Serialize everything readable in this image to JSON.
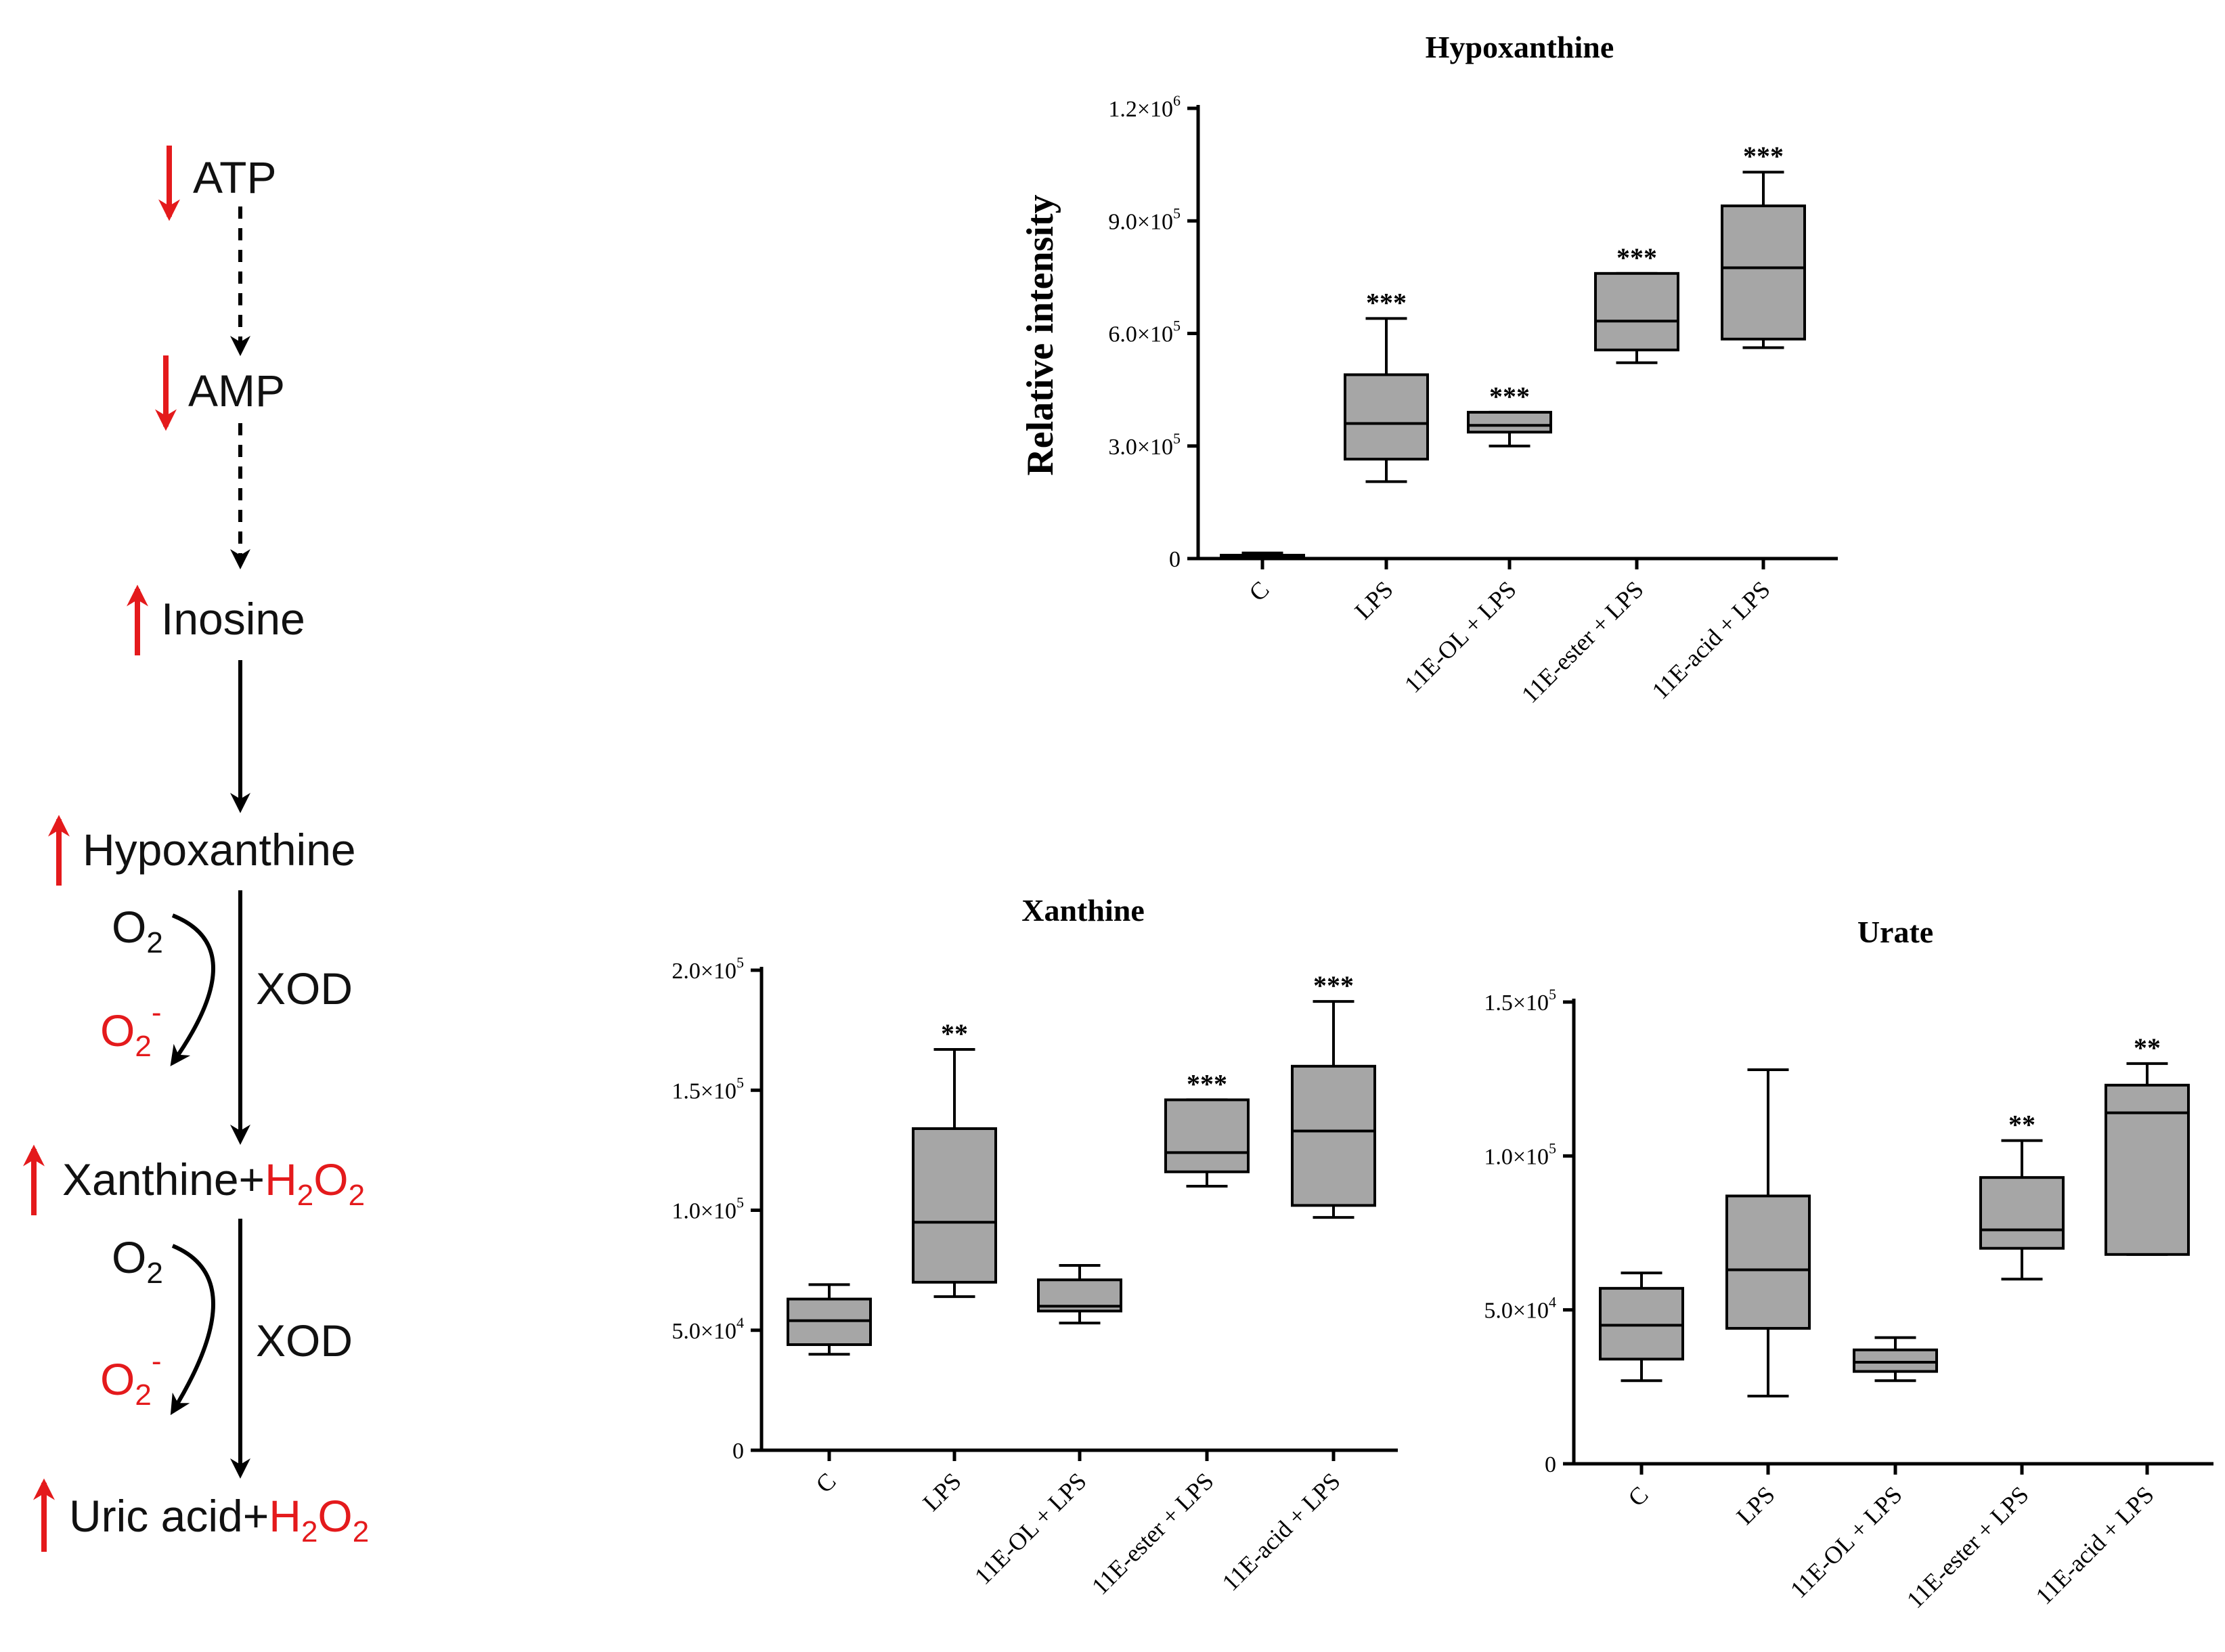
{
  "pathway": {
    "atp": "ATP",
    "amp": "AMP",
    "inosine": "Inosine",
    "hypoxanthine": "Hypoxanthine",
    "xanthine": "Xanthine+",
    "uric_acid": "Uric acid+",
    "h2o2_h": "H",
    "h2o2_o": "O",
    "sub2": "2",
    "o2": "O",
    "o2_minus": "-",
    "xod": "XOD"
  },
  "colors": {
    "decrease_arrow": "#e41a1c",
    "increase_arrow": "#e41a1c",
    "box_fill": "#a6a6a6",
    "line": "#000000"
  },
  "chart_data": [
    {
      "type": "box",
      "title": "Hypoxanthine",
      "ylabel": "Relative intensity",
      "ylim": [
        0,
        1200000
      ],
      "yticks": [
        {
          "mantissa": "0",
          "exp": ""
        },
        {
          "mantissa": "3.0×10",
          "exp": "5"
        },
        {
          "mantissa": "6.0×10",
          "exp": "5"
        },
        {
          "mantissa": "9.0×10",
          "exp": "5"
        },
        {
          "mantissa": "1.2×10",
          "exp": "6"
        }
      ],
      "ytick_values": [
        0,
        300000,
        600000,
        900000,
        1200000
      ],
      "categories": [
        "C",
        "LPS",
        "11E-OL + LPS",
        "11E-ester + LPS",
        "11E-acid + LPS"
      ],
      "boxes": [
        {
          "min": 0,
          "q1": 3000,
          "median": 6000,
          "q3": 9000,
          "max": 15000,
          "sig": ""
        },
        {
          "min": 205000,
          "q1": 265000,
          "median": 360000,
          "q3": 490000,
          "max": 640000,
          "sig": "***"
        },
        {
          "min": 300000,
          "q1": 337000,
          "median": 355000,
          "q3": 390000,
          "max": 390000,
          "sig": "***"
        },
        {
          "min": 522000,
          "q1": 556000,
          "median": 633000,
          "q3": 760000,
          "max": 760000,
          "sig": "***"
        },
        {
          "min": 562000,
          "q1": 585000,
          "median": 775000,
          "q3": 940000,
          "max": 1030000,
          "sig": "***"
        }
      ]
    },
    {
      "type": "box",
      "title": "Xanthine",
      "ylabel": "",
      "ylim": [
        0,
        200000
      ],
      "yticks": [
        {
          "mantissa": "0",
          "exp": ""
        },
        {
          "mantissa": "5.0×10",
          "exp": "4"
        },
        {
          "mantissa": "1.0×10",
          "exp": "5"
        },
        {
          "mantissa": "1.5×10",
          "exp": "5"
        },
        {
          "mantissa": "2.0×10",
          "exp": "5"
        }
      ],
      "ytick_values": [
        0,
        50000,
        100000,
        150000,
        200000
      ],
      "categories": [
        "C",
        "LPS",
        "11E-OL + LPS",
        "11E-ester + LPS",
        "11E-acid + LPS"
      ],
      "boxes": [
        {
          "min": 40000,
          "q1": 44000,
          "median": 54000,
          "q3": 63000,
          "max": 69000,
          "sig": ""
        },
        {
          "min": 64000,
          "q1": 70000,
          "median": 95000,
          "q3": 134000,
          "max": 167000,
          "sig": "**"
        },
        {
          "min": 53000,
          "q1": 58000,
          "median": 60000,
          "q3": 71000,
          "max": 77000,
          "sig": ""
        },
        {
          "min": 110000,
          "q1": 116000,
          "median": 124000,
          "q3": 146000,
          "max": 146000,
          "sig": "***"
        },
        {
          "min": 97000,
          "q1": 102000,
          "median": 133000,
          "q3": 160000,
          "max": 187000,
          "sig": "***"
        }
      ]
    },
    {
      "type": "box",
      "title": "Urate",
      "ylabel": "",
      "ylim": [
        0,
        150000
      ],
      "yticks": [
        {
          "mantissa": "0",
          "exp": ""
        },
        {
          "mantissa": "5.0×10",
          "exp": "4"
        },
        {
          "mantissa": "1.0×10",
          "exp": "5"
        },
        {
          "mantissa": "1.5×10",
          "exp": "5"
        }
      ],
      "ytick_values": [
        0,
        50000,
        100000,
        150000
      ],
      "categories": [
        "C",
        "LPS",
        "11E-OL + LPS",
        "11E-ester + LPS",
        "11E-acid + LPS"
      ],
      "boxes": [
        {
          "min": 27000,
          "q1": 34000,
          "median": 45000,
          "q3": 57000,
          "max": 62000,
          "sig": ""
        },
        {
          "min": 22000,
          "q1": 44000,
          "median": 63000,
          "q3": 87000,
          "max": 128000,
          "sig": ""
        },
        {
          "min": 27000,
          "q1": 30000,
          "median": 33000,
          "q3": 37000,
          "max": 41000,
          "sig": ""
        },
        {
          "min": 60000,
          "q1": 70000,
          "median": 76000,
          "q3": 93000,
          "max": 105000,
          "sig": "**"
        },
        {
          "min": 68000,
          "q1": 68000,
          "median": 114000,
          "q3": 123000,
          "max": 130000,
          "sig": "**"
        }
      ]
    }
  ]
}
